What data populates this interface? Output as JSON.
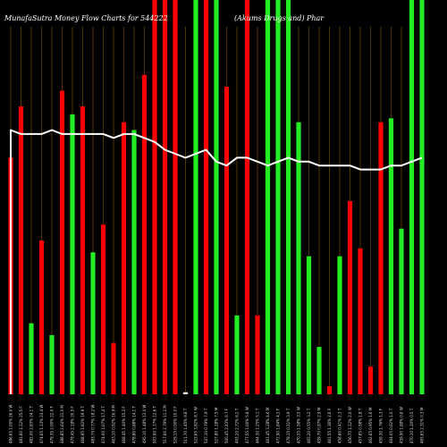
{
  "chart_data": {
    "type": "bar",
    "title": "MunafaSutra  Money Flow  Charts for 544222",
    "subtitle": "(Akums Drugs and) Phar",
    "colors": {
      "background": "#000000",
      "up": "#22ee22",
      "down": "#ff0000",
      "neutral": "#ffffff",
      "grid": "#8a5a00",
      "line": "#ffffff"
    },
    "grid": true,
    "ylim": [
      0,
      100
    ],
    "categories": [
      "486.65 1.00% 26.0 W",
      "481.60 1.12% 25.5 F",
      "482.00 2.83% 24.1 T",
      "474.65 1.13% 23.4 W",
      "479.35 2.00% 22.0 T",
      "488.85 2.64% 21.0 M",
      "479.45 2.18% 20.5 F",
      "468.95 1.92% 19.9 T",
      "483.75 0.77% 18.2 W",
      "474.00 1.07% 17.4 T",
      "463.10 0.92% 16.9 M",
      "468.45 1.40% 15.3 F",
      "478.80 0.88% 14.1 T",
      "495.10 1.48% 13.0 W",
      "503.90 1.17% 12.6 T",
      "517.60 2.79% 11.2 M",
      "529.15 0.00% 10.0 F",
      "511.70 1.45% 9.8 T",
      "523.65 3.82% 8.7 W",
      "547.10 0.79% 7.9 T",
      "527.80 1.28% 7.5 M",
      "500.45 2.43% 6.7 F",
      "493.20 2.72% 6.2 T",
      "477.55 1.00% 5.8 W",
      "464.30 1.25% 5.1 T",
      "461.45 3.28% 4.6 M",
      "472.90 1.84% 4.2 F",
      "478.15 0.51% 3.9 T",
      "470.35 1.58% 3.5 W",
      "465.20 0.55% 3.2 T",
      "459.70 0.97% 2.9 M",
      "461.55 1.36% 2.6 F",
      "458.60 0.41% 2.3 T",
      "456.75 1.12% 2.0 W",
      "457.85 0.98% 1.8 T",
      "462.65 0.95% 1.6 M",
      "459.30 1.76% 1.3 F",
      "464.05 0.62% 1.0 T",
      "459.90 1.88% 0.8 W",
      "470.10 1.20% 0.5 T",
      "465.65 2.31% 0.3 M"
    ],
    "directions": [
      "down",
      "down",
      "up",
      "down",
      "up",
      "down",
      "up",
      "down",
      "up",
      "down",
      "down",
      "down",
      "up",
      "down",
      "down",
      "down",
      "down",
      "neutral",
      "up",
      "down",
      "up",
      "down",
      "up",
      "down",
      "down",
      "up",
      "up",
      "up",
      "up",
      "up",
      "up",
      "down",
      "up",
      "down",
      "down",
      "down",
      "down",
      "up",
      "up",
      "up",
      "up"
    ],
    "values": [
      60,
      73,
      18,
      39,
      15,
      77,
      71,
      73,
      36,
      43,
      13,
      69,
      67,
      81,
      100,
      100,
      100,
      0.5,
      100,
      100,
      100,
      78,
      20,
      100,
      20,
      100,
      100,
      100,
      69,
      35,
      12,
      2,
      35,
      49,
      37,
      7,
      69,
      70,
      42,
      100,
      100
    ],
    "line": [
      67,
      66,
      66,
      66,
      67,
      66,
      66,
      66,
      66,
      66,
      65,
      66,
      66,
      65,
      64,
      62,
      61,
      60,
      61,
      62,
      59,
      58,
      60,
      60,
      59,
      58,
      59,
      60,
      59,
      59,
      58,
      58,
      58,
      58,
      57,
      57,
      57,
      58,
      58,
      59,
      60
    ]
  }
}
